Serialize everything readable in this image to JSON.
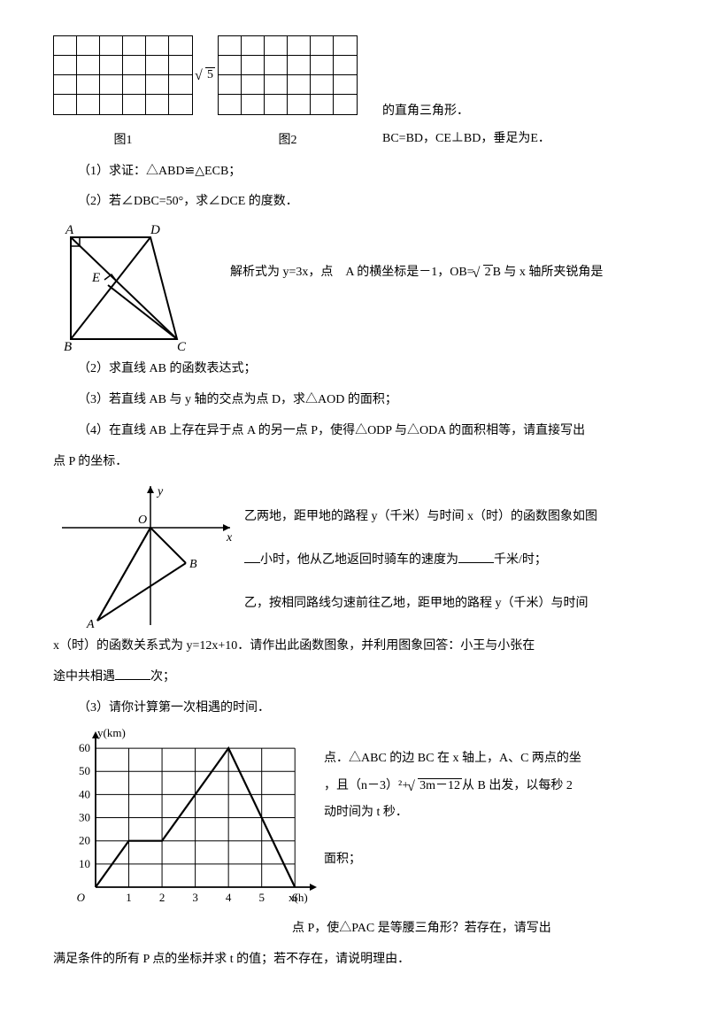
{
  "top": {
    "grid1_label": "图1",
    "grid2_label": "图2",
    "sqrt5": "5",
    "right_text_1": "的直角三角形．",
    "right_text_2": "BC=BD，CE⊥BD，垂足为E．"
  },
  "sec1": {
    "q1": "（1）求证：△ABD≌△ECB；",
    "q2": "（2）若∠DBC=50°，求∠DCE 的度数．"
  },
  "oa": {
    "line1_left": "解析式为 y=3x，点　A 的横坐标是－1，OB=",
    "sqrt2": "2",
    "line1_right": "B 与 x 轴所夹锐角是"
  },
  "sec2": {
    "q2": "（2）求直线 AB 的函数表达式；",
    "q3": "（3）若直线 AB 与 y 轴的交点为点 D，求△AOD 的面积；",
    "q4a": "（4）在直线 AB 上存在异于点 A 的另一点 P，使得△ODP 与△ODA 的面积相等，请直接写出",
    "q4b": "点 P 的坐标．"
  },
  "sec3": {
    "right1": "乙两地，距甲地的路程 y（千米）与时间 x（时）的函数图象如图",
    "right2_a": "小时，他从乙地返回时骑车的速度为",
    "right2_b": "千米/时；",
    "right3": "乙，按相同路线匀速前往乙地，距甲地的路程 y（千米）与时间",
    "line4": "x（时）的函数关系式为 y=12x+10．请作出此函数图象，并利用图象回答：小王与小张在",
    "line5a": "途中共相遇",
    "line5b": "次；",
    "q3": "（3）请你计算第一次相遇的时间．"
  },
  "chart": {
    "ylabel": "y(km)",
    "xlabel": "x(h)",
    "yticks": [
      "10",
      "20",
      "30",
      "40",
      "50",
      "60"
    ],
    "xticks": [
      "1",
      "2",
      "3",
      "4",
      "5",
      "6"
    ],
    "xmax": 6.5,
    "ymax": 65,
    "series": [
      [
        0,
        0
      ],
      [
        1,
        20
      ],
      [
        2,
        20
      ],
      [
        4,
        60
      ],
      [
        6,
        0
      ]
    ],
    "stroke": "#000000",
    "grid_color": "#000000"
  },
  "sec4": {
    "r1": "点．△ABC 的边 BC 在 x 轴上，A、C 两点的坐",
    "r2a": "，且（n－3）²+",
    "sqrt_expr": "3m－12",
    "r2b": "从 B 出发，以每秒 2",
    "r3": "动时间为 t 秒．",
    "r4": "面积；",
    "line_bottom1": "点 P，使△PAC 是等腰三角形？若存在，请写出",
    "line_bottom2": "满足条件的所有 P 点的坐标并求 t 的值；若不存在，请说明理由．"
  },
  "geom": {
    "A": "A",
    "B": "B",
    "C": "C",
    "D": "D",
    "E": "E"
  },
  "coord": {
    "O": "O",
    "x": "x",
    "y": "y",
    "A": "A",
    "B": "B"
  }
}
